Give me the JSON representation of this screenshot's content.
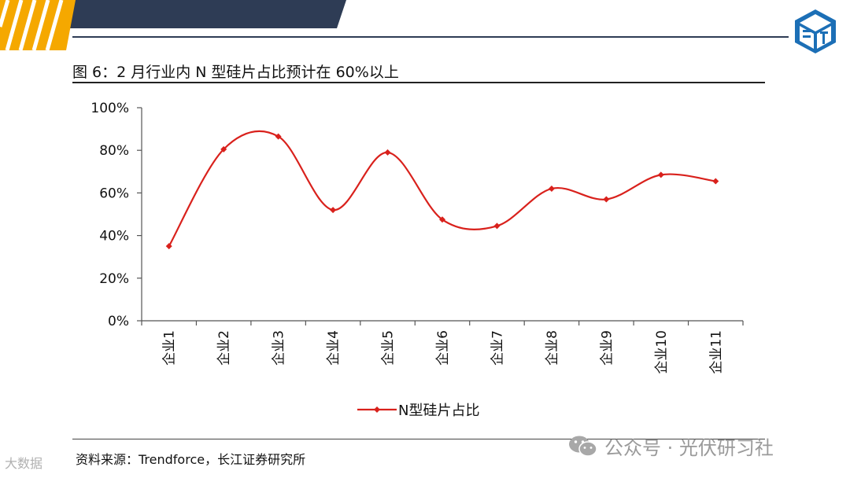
{
  "header": {
    "stripe_color": "#f5a800",
    "band_color": "#2e3c55",
    "logo_color": "#1c6fb6"
  },
  "caption": {
    "text": "图 6：2 月行业内 N 型硅片占比预计在 60%以上"
  },
  "chart_data": {
    "type": "line",
    "categories": [
      "企业1",
      "企业2",
      "企业3",
      "企业4",
      "企业5",
      "企业6",
      "企业7",
      "企业8",
      "企业9",
      "企业10",
      "企业11"
    ],
    "series": [
      {
        "name": "N型硅片占比",
        "values": [
          35,
          80.5,
          86.5,
          52,
          79,
          47.5,
          44.5,
          62,
          57,
          68.5,
          65.5
        ],
        "color": "#d9211c",
        "smooth": true,
        "marker": "diamond"
      }
    ],
    "yticks": [
      "0%",
      "20%",
      "40%",
      "60%",
      "80%",
      "100%"
    ],
    "ylim": [
      0,
      100
    ],
    "grid": false,
    "legend": "bottom"
  },
  "source": {
    "text": "资料来源：Trendforce，长江证券研究所"
  },
  "watermark": {
    "text": "公众号 · 光伏研习社",
    "icon": "wechat-icon"
  },
  "corner_mark": {
    "text": "大数据"
  }
}
